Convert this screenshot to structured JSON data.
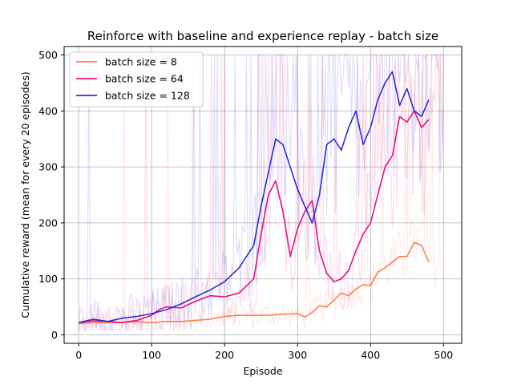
{
  "chart_data": {
    "type": "line",
    "title": "Reinforce with baseline and experience replay - batch size",
    "xlabel": "Episode",
    "ylabel": "Cumulative reward (mean for every 20 episodes)",
    "xlim": [
      -20,
      525
    ],
    "ylim": [
      -15,
      515
    ],
    "xticks": [
      0,
      100,
      200,
      300,
      400,
      500
    ],
    "yticks": [
      0,
      100,
      200,
      300,
      400,
      500
    ],
    "grid": true,
    "legend_position": "top-left",
    "series": [
      {
        "name": "batch size = 8",
        "color": "#ff7f50",
        "raw_noise": 55,
        "x": [
          0,
          20,
          40,
          60,
          80,
          100,
          120,
          140,
          160,
          180,
          200,
          220,
          240,
          260,
          280,
          300,
          310,
          320,
          330,
          340,
          350,
          360,
          370,
          380,
          390,
          400,
          410,
          420,
          430,
          440,
          450,
          460,
          470,
          480
        ],
        "values": [
          20,
          22,
          22,
          22,
          24,
          22,
          24,
          24,
          26,
          28,
          33,
          35,
          35,
          35,
          37,
          38,
          32,
          40,
          52,
          50,
          62,
          75,
          70,
          82,
          90,
          88,
          112,
          120,
          130,
          140,
          140,
          165,
          160,
          130
        ]
      },
      {
        "name": "batch size = 64",
        "color": "#e8127e",
        "raw_noise": 90,
        "x": [
          0,
          20,
          40,
          60,
          80,
          100,
          110,
          120,
          140,
          160,
          180,
          200,
          220,
          240,
          250,
          260,
          270,
          280,
          290,
          300,
          310,
          320,
          330,
          340,
          350,
          360,
          370,
          380,
          390,
          400,
          410,
          420,
          430,
          440,
          450,
          460,
          470,
          480
        ],
        "values": [
          22,
          25,
          24,
          22,
          26,
          35,
          45,
          50,
          48,
          60,
          70,
          68,
          75,
          100,
          180,
          250,
          275,
          220,
          140,
          190,
          220,
          240,
          150,
          110,
          95,
          100,
          115,
          150,
          180,
          200,
          250,
          300,
          320,
          390,
          380,
          400,
          370,
          385
        ]
      },
      {
        "name": "batch size = 128",
        "color": "#2b2be0",
        "raw_noise": 100,
        "x": [
          0,
          20,
          40,
          60,
          80,
          100,
          120,
          140,
          160,
          180,
          200,
          220,
          240,
          250,
          260,
          270,
          280,
          290,
          300,
          310,
          320,
          330,
          340,
          350,
          360,
          370,
          380,
          390,
          400,
          410,
          420,
          430,
          440,
          450,
          460,
          470,
          480
        ],
        "values": [
          22,
          28,
          24,
          30,
          33,
          38,
          45,
          55,
          68,
          80,
          95,
          120,
          160,
          230,
          290,
          350,
          340,
          300,
          260,
          230,
          200,
          250,
          340,
          350,
          330,
          370,
          400,
          340,
          370,
          420,
          450,
          470,
          410,
          440,
          400,
          390,
          420
        ]
      }
    ]
  }
}
